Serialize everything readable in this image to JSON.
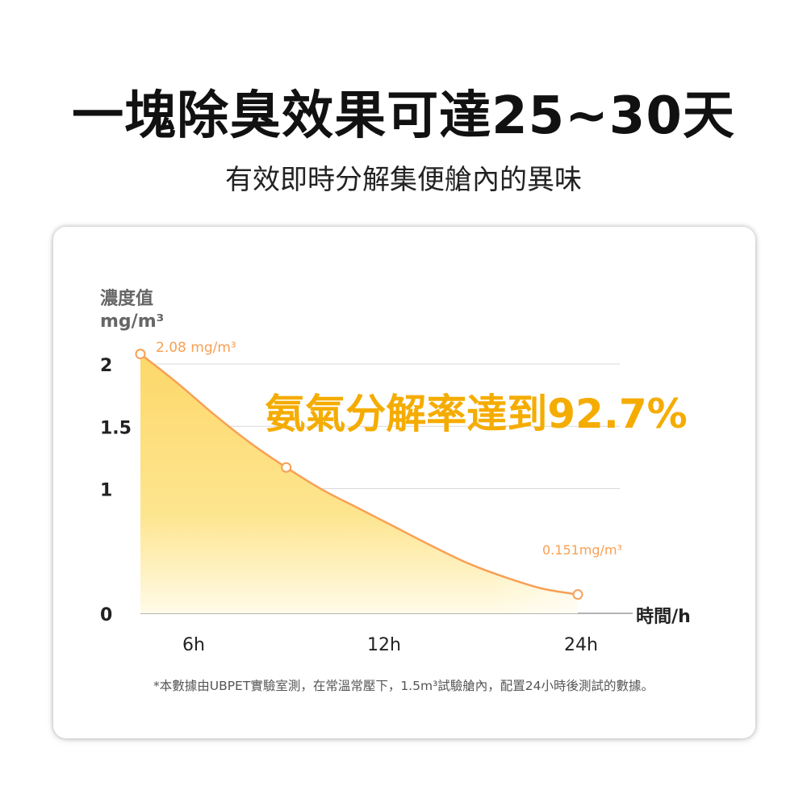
{
  "header": {
    "title": "一塊除臭效果可達25~30天",
    "subtitle": "有效即時分解集便艙內的異味"
  },
  "colors": {
    "curve": "#f7a054",
    "fill_top": "#fdd86a",
    "fill_bottom": "#fffbe8",
    "highlight": "#f5ac00",
    "grid": "#d9d9d9"
  },
  "chart_data": {
    "type": "area",
    "ylabel_line1": "濃度值",
    "ylabel_line2": "mg/m³",
    "xlabel": "時間/h",
    "y_ticks": [
      {
        "value": 2,
        "label": "2"
      },
      {
        "value": 1.5,
        "label": "1.5"
      },
      {
        "value": 1,
        "label": "1"
      },
      {
        "value": 0,
        "label": "0"
      }
    ],
    "x_ticks": [
      {
        "value": 6,
        "label": "6h"
      },
      {
        "value": 12,
        "label": "12h"
      },
      {
        "value": 24,
        "label": "24h"
      }
    ],
    "ylim": [
      0,
      2
    ],
    "series": [
      {
        "points": [
          {
            "x": 0,
            "y": 2.08
          },
          {
            "x": 2,
            "y": 1.85
          },
          {
            "x": 4,
            "y": 1.6
          },
          {
            "x": 6,
            "y": 1.37
          },
          {
            "x": 8,
            "y": 1.17
          },
          {
            "x": 10,
            "y": 0.99
          },
          {
            "x": 12,
            "y": 0.84
          },
          {
            "x": 14,
            "y": 0.69
          },
          {
            "x": 16,
            "y": 0.54
          },
          {
            "x": 18,
            "y": 0.4
          },
          {
            "x": 20,
            "y": 0.29
          },
          {
            "x": 22,
            "y": 0.2
          },
          {
            "x": 24,
            "y": 0.151
          }
        ],
        "markers": [
          {
            "x": 0,
            "y": 2.08
          },
          {
            "x": 8,
            "y": 1.17
          },
          {
            "x": 24,
            "y": 0.151
          }
        ]
      }
    ],
    "annotations": {
      "start_label": "2.08 mg/m³",
      "end_label": "0.151mg/m³",
      "highlight": "氨氣分解率達到92.7%"
    }
  },
  "footnote": "*本數據由UBPET實驗室測，在常溫常壓下，1.5m³試驗艙內，配置24小時後測試的數據。"
}
